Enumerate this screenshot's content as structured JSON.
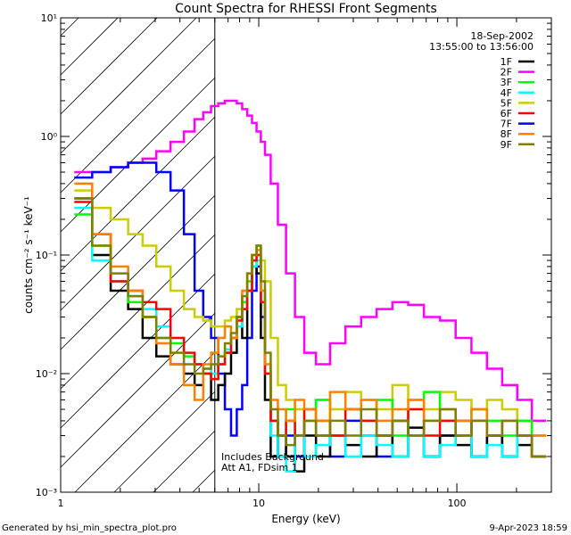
{
  "chart_data": {
    "type": "line",
    "title": "Count Spectra for RHESSI Front Segments",
    "xlabel": "Energy (keV)",
    "ylabel": "counts cm⁻² s⁻¹ keV⁻¹",
    "xscale": "log",
    "yscale": "log",
    "xlim": [
      1,
      300
    ],
    "ylim": [
      0.001,
      10
    ],
    "x_ticks": [
      {
        "value": 1,
        "label": "1"
      },
      {
        "value": 10,
        "label": "10"
      },
      {
        "value": 100,
        "label": "100"
      }
    ],
    "y_ticks": [
      {
        "value": 10,
        "label": "10¹"
      },
      {
        "value": 1,
        "label": "10⁰"
      },
      {
        "value": 0.1,
        "label": "10⁻¹"
      },
      {
        "value": 0.01,
        "label": "10⁻²"
      },
      {
        "value": 0.001,
        "label": "10⁻³"
      }
    ],
    "hatched_region_max_energy": 6,
    "legend_position": "top-right",
    "date": "18-Sep-2002",
    "time_range": "13:55:00 to 13:56:00",
    "annotations": [
      "Includes Background",
      "Att A1, FDsim 1"
    ],
    "energies": [
      1.3,
      1.6,
      2,
      2.4,
      2.8,
      3.3,
      3.9,
      4.5,
      5,
      5.5,
      6,
      6.5,
      7,
      7.5,
      8,
      8.5,
      9,
      9.5,
      10,
      10.5,
      11,
      12,
      13,
      14.5,
      16,
      18,
      21,
      25,
      30,
      36,
      43,
      52,
      62,
      75,
      90,
      108,
      130,
      155,
      185,
      220,
      260
    ],
    "series": [
      {
        "name": "1F",
        "color": "#000000",
        "values": [
          0.3,
          0.1,
          0.05,
          0.035,
          0.02,
          0.014,
          0.012,
          0.01,
          0.008,
          0.01,
          0.006,
          0.008,
          0.01,
          0.015,
          0.03,
          0.02,
          0.05,
          0.08,
          0.07,
          0.02,
          0.006,
          0.002,
          0.003,
          0.002,
          0.0015,
          0.003,
          0.002,
          0.003,
          0.0025,
          0.002,
          0.003,
          0.002,
          0.0035,
          0.002,
          0.003,
          0.0025,
          0.002,
          0.003,
          0.002,
          0.0025,
          0.002
        ]
      },
      {
        "name": "2F",
        "color": "#ff00ff",
        "values": [
          0.5,
          0.5,
          0.55,
          0.6,
          0.65,
          0.75,
          0.9,
          1.1,
          1.4,
          1.6,
          1.8,
          1.9,
          2.0,
          2.0,
          1.9,
          1.7,
          1.5,
          1.3,
          1.1,
          0.9,
          0.7,
          0.4,
          0.18,
          0.07,
          0.03,
          0.015,
          0.012,
          0.018,
          0.025,
          0.03,
          0.035,
          0.04,
          0.038,
          0.03,
          0.028,
          0.02,
          0.015,
          0.011,
          0.008,
          0.006,
          0.004
        ]
      },
      {
        "name": "3F",
        "color": "#00ff00",
        "values": [
          0.22,
          0.12,
          0.06,
          0.04,
          0.03,
          0.02,
          0.018,
          0.014,
          0.012,
          0.01,
          0.009,
          0.012,
          0.015,
          0.02,
          0.03,
          0.04,
          0.06,
          0.1,
          0.12,
          0.05,
          0.01,
          0.004,
          0.003,
          0.005,
          0.003,
          0.004,
          0.006,
          0.003,
          0.005,
          0.004,
          0.006,
          0.003,
          0.005,
          0.007,
          0.004,
          0.003,
          0.005,
          0.004,
          0.003,
          0.004,
          0.003
        ]
      },
      {
        "name": "4F",
        "color": "#00ffff",
        "values": [
          0.25,
          0.09,
          0.06,
          0.045,
          0.035,
          0.025,
          0.02,
          0.015,
          0.012,
          0.011,
          0.01,
          0.012,
          0.016,
          0.02,
          0.025,
          0.035,
          0.05,
          0.08,
          0.09,
          0.04,
          0.01,
          0.003,
          0.002,
          0.0015,
          0.003,
          0.002,
          0.0025,
          0.003,
          0.002,
          0.003,
          0.0025,
          0.002,
          0.003,
          0.002,
          0.0025,
          0.003,
          0.002,
          0.0025,
          0.002,
          0.003,
          0.002
        ]
      },
      {
        "name": "5F",
        "color": "#cccc00",
        "values": [
          0.35,
          0.25,
          0.2,
          0.15,
          0.12,
          0.08,
          0.05,
          0.035,
          0.03,
          0.028,
          0.025,
          0.025,
          0.028,
          0.03,
          0.035,
          0.04,
          0.06,
          0.08,
          0.1,
          0.09,
          0.06,
          0.02,
          0.008,
          0.006,
          0.005,
          0.004,
          0.006,
          0.005,
          0.007,
          0.006,
          0.005,
          0.008,
          0.006,
          0.005,
          0.007,
          0.006,
          0.005,
          0.006,
          0.005,
          0.004,
          0.003
        ]
      },
      {
        "name": "6F",
        "color": "#ff0000",
        "values": [
          0.28,
          0.15,
          0.06,
          0.05,
          0.04,
          0.035,
          0.02,
          0.015,
          0.012,
          0.01,
          0.009,
          0.012,
          0.015,
          0.02,
          0.028,
          0.035,
          0.05,
          0.09,
          0.1,
          0.04,
          0.01,
          0.004,
          0.003,
          0.004,
          0.003,
          0.005,
          0.004,
          0.003,
          0.005,
          0.004,
          0.003,
          0.004,
          0.005,
          0.003,
          0.004,
          0.003,
          0.004,
          0.003,
          0.004,
          0.003,
          0.002
        ]
      },
      {
        "name": "7F",
        "color": "#0000ff",
        "values": [
          0.45,
          0.5,
          0.55,
          0.6,
          0.6,
          0.5,
          0.35,
          0.15,
          0.05,
          0.03,
          0.02,
          0.01,
          0.005,
          0.003,
          0.005,
          0.008,
          0.02,
          0.05,
          0.08,
          0.03,
          0.01,
          0.004,
          0.002,
          0.003,
          0.002,
          0.004,
          0.003,
          0.002,
          0.004,
          0.003,
          0.002,
          0.004,
          0.003,
          0.002,
          0.003,
          0.004,
          0.002,
          0.003,
          0.002,
          0.003,
          0.002
        ]
      },
      {
        "name": "8F",
        "color": "#ff8000",
        "values": [
          0.4,
          0.15,
          0.08,
          0.05,
          0.03,
          0.018,
          0.012,
          0.008,
          0.006,
          0.012,
          0.015,
          0.02,
          0.025,
          0.02,
          0.03,
          0.05,
          0.07,
          0.1,
          0.11,
          0.05,
          0.012,
          0.006,
          0.005,
          0.004,
          0.006,
          0.005,
          0.004,
          0.007,
          0.005,
          0.006,
          0.004,
          0.005,
          0.006,
          0.004,
          0.005,
          0.004,
          0.005,
          0.003,
          0.004,
          0.003,
          0.003
        ]
      },
      {
        "name": "9F",
        "color": "#808000",
        "values": [
          0.3,
          0.12,
          0.07,
          0.045,
          0.03,
          0.02,
          0.015,
          0.012,
          0.01,
          0.011,
          0.012,
          0.014,
          0.018,
          0.022,
          0.03,
          0.045,
          0.07,
          0.1,
          0.12,
          0.06,
          0.015,
          0.005,
          0.003,
          0.0025,
          0.003,
          0.004,
          0.003,
          0.004,
          0.003,
          0.005,
          0.003,
          0.004,
          0.003,
          0.004,
          0.005,
          0.003,
          0.004,
          0.003,
          0.004,
          0.003,
          0.002
        ]
      }
    ]
  },
  "footer": {
    "generated_by": "Generated by hsi_min_spectra_plot.pro",
    "timestamp": "9-Apr-2023 18:59"
  }
}
